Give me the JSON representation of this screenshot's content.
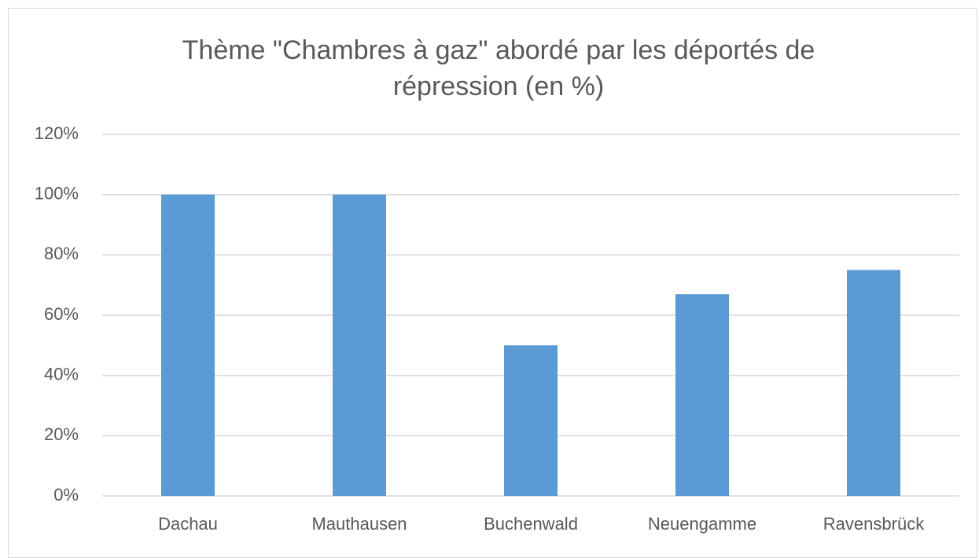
{
  "chart_data": {
    "type": "bar",
    "title": "Thème \"Chambres à gaz\" abordé par les déportés de répression (en %)",
    "categories": [
      "Dachau",
      "Mauthausen",
      "Buchenwald",
      "Neuengamme",
      "Ravensbrück"
    ],
    "values": [
      100,
      100,
      50,
      67,
      75
    ],
    "color": "#5b9bd5",
    "ylim": [
      0,
      120
    ],
    "yticks": [
      {
        "value": 0,
        "label": "0%"
      },
      {
        "value": 20,
        "label": "20%"
      },
      {
        "value": 40,
        "label": "40%"
      },
      {
        "value": 60,
        "label": "60%"
      },
      {
        "value": 80,
        "label": "80%"
      },
      {
        "value": 100,
        "label": "100%"
      },
      {
        "value": 120,
        "label": "120%"
      }
    ],
    "grid": true
  }
}
